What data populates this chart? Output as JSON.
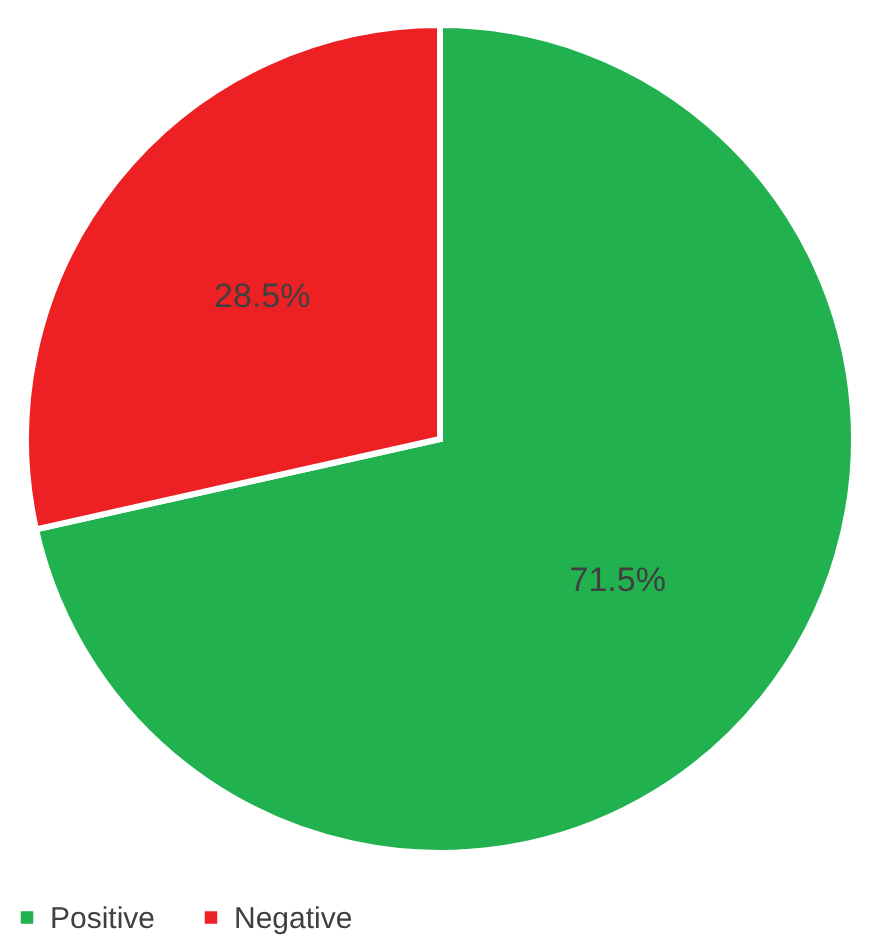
{
  "chart_data": {
    "type": "pie",
    "categories": [
      "Positive",
      "Negative"
    ],
    "values": [
      71.5,
      28.5
    ],
    "colors": [
      "#21b14f",
      "#ed2024"
    ],
    "value_labels": [
      "71.5%",
      "28.5%"
    ],
    "legend": "bottom"
  }
}
